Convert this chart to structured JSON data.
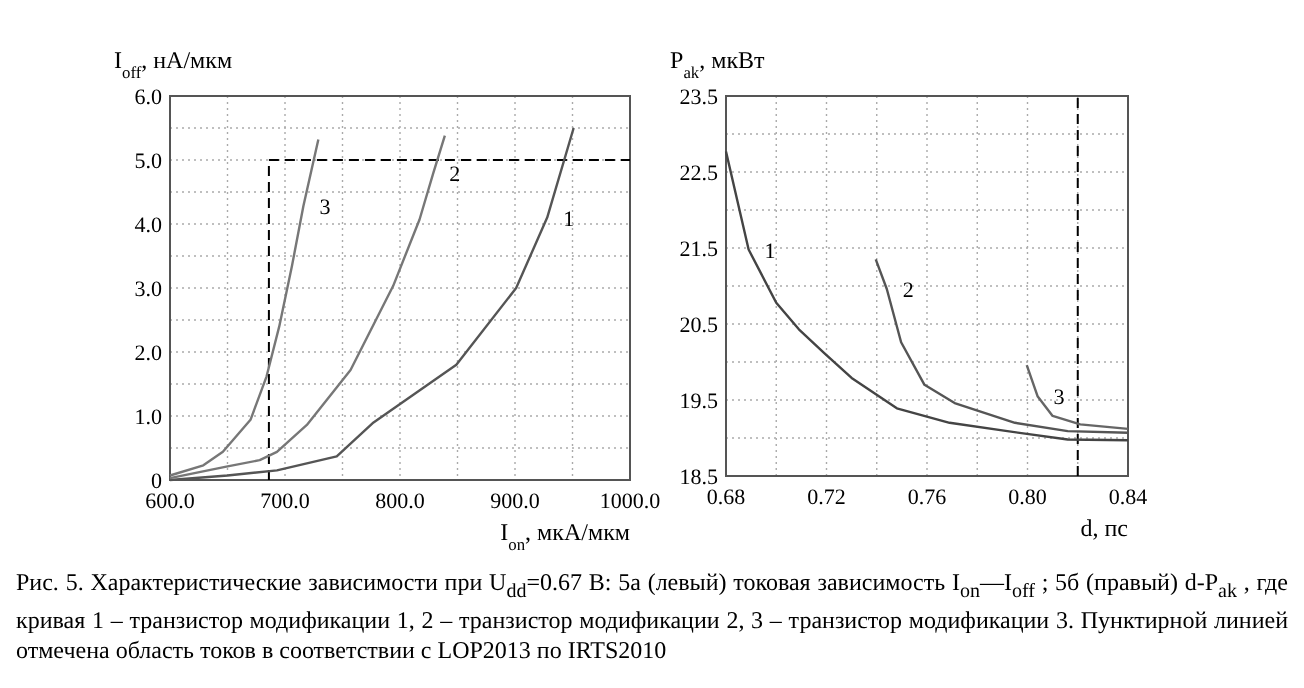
{
  "chart_data": [
    {
      "type": "line",
      "xlabel": "I$_{on}$, мкА/мкм",
      "ylabel": "I$_{off}$, нА/мкм",
      "xlim": [
        600,
        1000
      ],
      "ylim": [
        0,
        6
      ],
      "xticks": [
        {
          "value": 600,
          "label": "600.0"
        },
        {
          "value": 650,
          "label": null
        },
        {
          "value": 700,
          "label": "700.0"
        },
        {
          "value": 750,
          "label": null
        },
        {
          "value": 800,
          "label": "800.0"
        },
        {
          "value": 850,
          "label": null
        },
        {
          "value": 900,
          "label": "900.0"
        },
        {
          "value": 950,
          "label": null
        },
        {
          "value": 1000,
          "label": "1000.0"
        }
      ],
      "yticks": [
        0,
        {
          "value": 0.5,
          "label": null
        },
        {
          "value": 1,
          "label": "1.0"
        },
        {
          "value": 1.5,
          "label": null
        },
        {
          "value": 2,
          "label": "2.0"
        },
        {
          "value": 2.5,
          "label": null
        },
        {
          "value": 3,
          "label": "3.0"
        },
        {
          "value": 3.5,
          "label": null
        },
        {
          "value": 4,
          "label": "4.0"
        },
        {
          "value": 4.5,
          "label": null
        },
        {
          "value": 5,
          "label": "5.0"
        },
        {
          "value": 5.5,
          "label": null
        },
        {
          "value": 6,
          "label": "6.0"
        }
      ],
      "grid": true,
      "line_style": "solid",
      "ref_lines": [
        {
          "axis": "x",
          "value": 686,
          "color": "#000000",
          "line_style": "dashed"
        },
        {
          "axis": "y",
          "value": 5.0,
          "color": "#000000",
          "line_style": "dashed"
        }
      ],
      "series": [
        {
          "name": "1",
          "color": "#555555",
          "x": [
            600,
            650,
            693,
            745,
            777,
            849,
            901,
            928,
            951
          ],
          "values": [
            0,
            0.07,
            0.15,
            0.37,
            0.9,
            1.8,
            3.0,
            4.1,
            5.5
          ]
        },
        {
          "name": "2",
          "color": "#777777",
          "x": [
            600,
            649,
            678,
            693,
            719,
            757,
            794,
            817,
            829,
            839
          ],
          "values": [
            0.03,
            0.21,
            0.31,
            0.44,
            0.86,
            1.72,
            3.03,
            4.07,
            4.8,
            5.38
          ]
        },
        {
          "name": "3",
          "color": "#777777",
          "x": [
            600,
            629,
            646,
            670,
            684,
            695,
            706,
            716,
            729
          ],
          "values": [
            0.07,
            0.23,
            0.44,
            0.94,
            1.62,
            2.4,
            3.34,
            4.28,
            5.32
          ]
        }
      ],
      "annotations": [
        "Рис. 5. Характеристические зависимости при U$_{dd}$=0.67 В: 5а (левый) токовая зависимость I$_{on}$—I$_{off}$ ; 5б (правый) d-P$_{ak}$ , где кривая 1 – транзистор модификации 1, 2 – транзистор модификации 2, 3 – транзистор модификации 3. Пунктирной линией отмечена область токов в соответствии с LOP2013 по IRTS2010"
      ]
    },
    {
      "type": "line",
      "xlabel": "d, пс",
      "ylabel": "P$_{ak}$, мкВт",
      "xlim": [
        0.68,
        0.84
      ],
      "ylim": [
        18.5,
        23.5
      ],
      "xticks": [
        0.68,
        {
          "value": 0.7,
          "label": null
        },
        0.72,
        {
          "value": 0.74,
          "label": null
        },
        0.76,
        {
          "value": 0.78,
          "label": null
        },
        {
          "value": 0.8,
          "label": "0.80"
        },
        {
          "value": 0.82,
          "label": null
        },
        0.84
      ],
      "yticks": [
        18.5,
        {
          "value": 19,
          "label": null
        },
        19.5,
        {
          "value": 20,
          "label": null
        },
        20.5,
        {
          "value": 21,
          "label": null
        },
        21.5,
        {
          "value": 22,
          "label": null
        },
        22.5,
        {
          "value": 23,
          "label": null
        },
        23.5
      ],
      "grid": true,
      "line_style": "solid",
      "ref_lines": [
        {
          "axis": "x",
          "value": 0.82,
          "color": "#000000",
          "line_style": "dashed"
        }
      ],
      "series": [
        {
          "name": "1",
          "color": "#444444",
          "x": [
            0.68,
            0.689,
            0.7,
            0.709,
            0.719,
            0.73,
            0.748,
            0.769,
            0.792,
            0.816,
            0.84
          ],
          "values": [
            22.77,
            21.48,
            20.78,
            20.43,
            20.12,
            19.79,
            19.39,
            19.2,
            19.09,
            18.98,
            18.97
          ]
        },
        {
          "name": "2",
          "color": "#555555",
          "x": [
            0.7396,
            0.744,
            0.7497,
            0.759,
            0.771,
            0.795,
            0.816,
            0.84
          ],
          "values": [
            21.35,
            20.96,
            20.26,
            19.7,
            19.46,
            19.2,
            19.09,
            19.07
          ]
        },
        {
          "name": "3",
          "color": "#666666",
          "x": [
            0.7997,
            0.804,
            0.81,
            0.821,
            0.84
          ],
          "values": [
            19.96,
            19.55,
            19.29,
            19.18,
            19.12
          ]
        }
      ]
    }
  ]
}
